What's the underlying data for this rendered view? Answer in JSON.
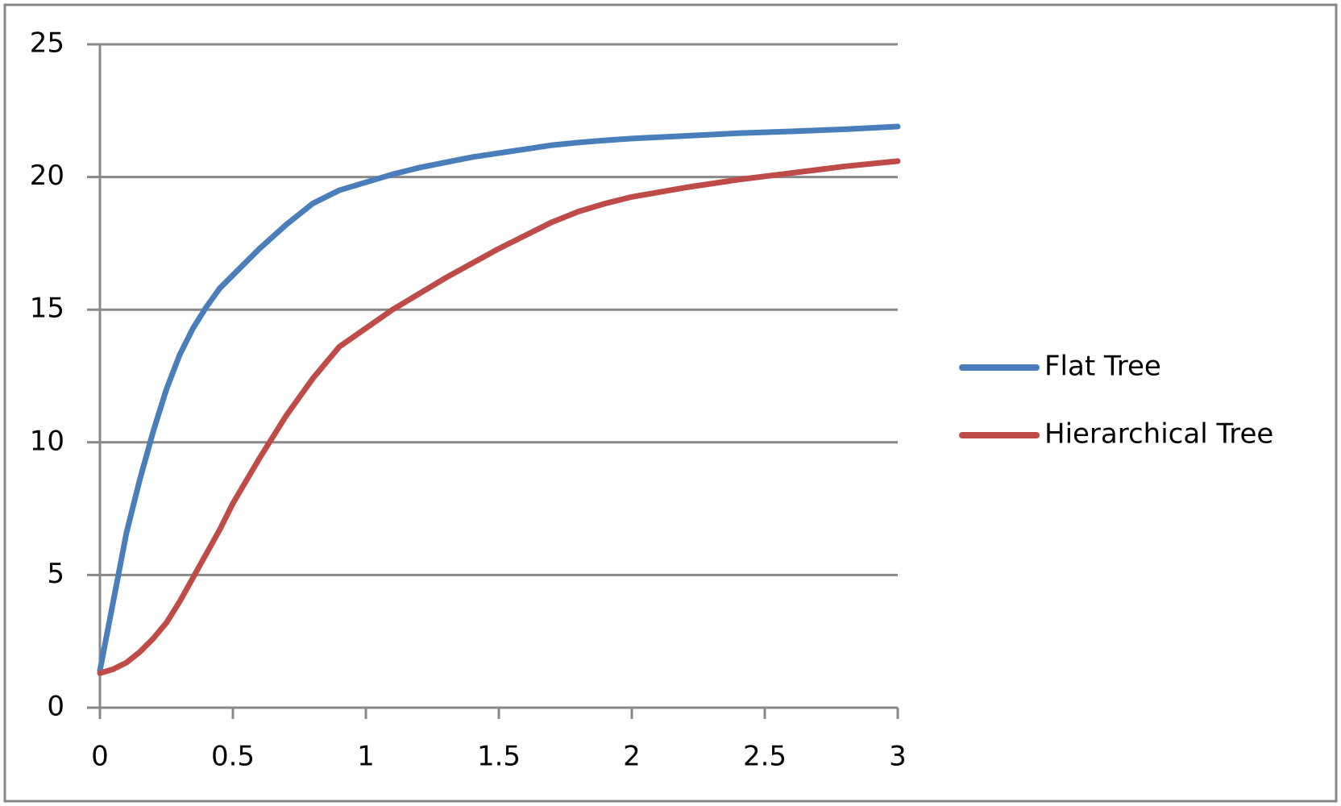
{
  "chart_data": {
    "type": "line",
    "x": [
      0,
      0.05,
      0.1,
      0.15,
      0.2,
      0.25,
      0.3,
      0.35,
      0.4,
      0.45,
      0.5,
      0.6,
      0.7,
      0.8,
      0.9,
      1.0,
      1.1,
      1.2,
      1.3,
      1.4,
      1.5,
      1.6,
      1.7,
      1.8,
      1.9,
      2.0,
      2.2,
      2.4,
      2.6,
      2.8,
      3.0
    ],
    "series": [
      {
        "name": "Flat Tree",
        "color": "#4a7ebb",
        "values": [
          1.4,
          4.0,
          6.6,
          8.6,
          10.4,
          12,
          13.3,
          14.3,
          15.1,
          15.8,
          16.3,
          17.3,
          18.2,
          19.0,
          19.5,
          19.8,
          20.1,
          20.35,
          20.55,
          20.75,
          20.9,
          21.05,
          21.2,
          21.3,
          21.38,
          21.45,
          21.55,
          21.65,
          21.72,
          21.8,
          21.9
        ]
      },
      {
        "name": "Hierarchical Tree",
        "color": "#be4b48",
        "values": [
          1.3,
          1.45,
          1.7,
          2.1,
          2.6,
          3.2,
          4.0,
          4.9,
          5.8,
          6.7,
          7.7,
          9.4,
          11.0,
          12.4,
          13.6,
          14.3,
          15.0,
          15.6,
          16.2,
          16.75,
          17.3,
          17.8,
          18.3,
          18.7,
          19.0,
          19.25,
          19.6,
          19.9,
          20.15,
          20.4,
          20.6
        ]
      }
    ],
    "xlim": [
      0,
      3
    ],
    "xticks": [
      0,
      0.5,
      1,
      1.5,
      2,
      2.5,
      3
    ],
    "ylim": [
      0,
      25
    ],
    "yticks": [
      0,
      5,
      10,
      15,
      20,
      25
    ],
    "grid": true,
    "legend": "right"
  }
}
